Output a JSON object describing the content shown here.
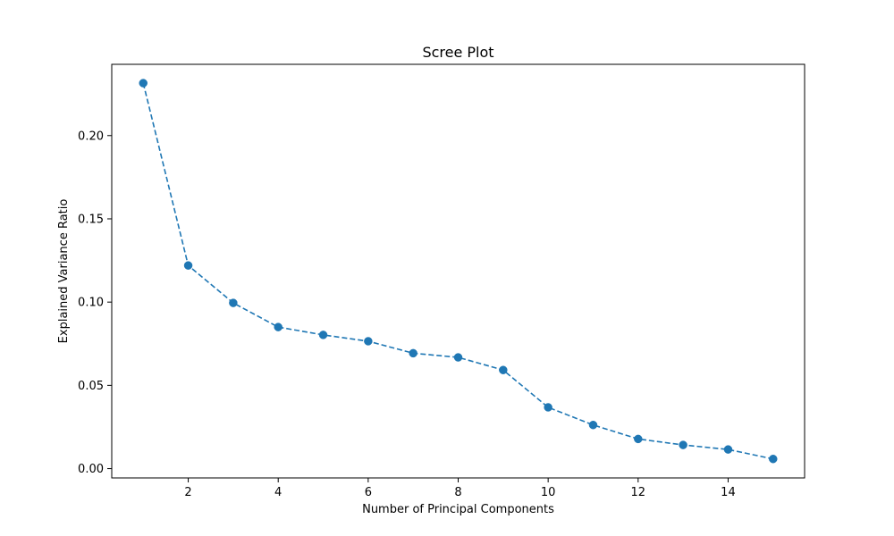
{
  "chart_data": {
    "type": "line",
    "title": "Scree Plot",
    "xlabel": "Number of Principal Components",
    "ylabel": "Explained Variance Ratio",
    "x": [
      1,
      2,
      3,
      4,
      5,
      6,
      7,
      8,
      9,
      10,
      11,
      12,
      13,
      14,
      15
    ],
    "y": [
      0.2315,
      0.122,
      0.0995,
      0.085,
      0.0803,
      0.0765,
      0.0693,
      0.0668,
      0.0592,
      0.0368,
      0.0262,
      0.0178,
      0.0142,
      0.0115,
      0.0058
    ],
    "xlim": [
      0.3,
      15.7
    ],
    "ylim": [
      -0.0056,
      0.2428
    ],
    "xticks": [
      2,
      4,
      6,
      8,
      10,
      12,
      14
    ],
    "xtick_labels": [
      "2",
      "4",
      "6",
      "8",
      "10",
      "12",
      "14"
    ],
    "yticks": [
      0.0,
      0.05,
      0.1,
      0.15,
      0.2
    ],
    "ytick_labels": [
      "0.00",
      "0.05",
      "0.10",
      "0.15",
      "0.20"
    ],
    "line_style": "dashed",
    "marker": "circle",
    "grid": false,
    "legend": "none",
    "colors": {
      "series": "#1f77b4",
      "axes": "#000000",
      "background": "#ffffff"
    }
  }
}
